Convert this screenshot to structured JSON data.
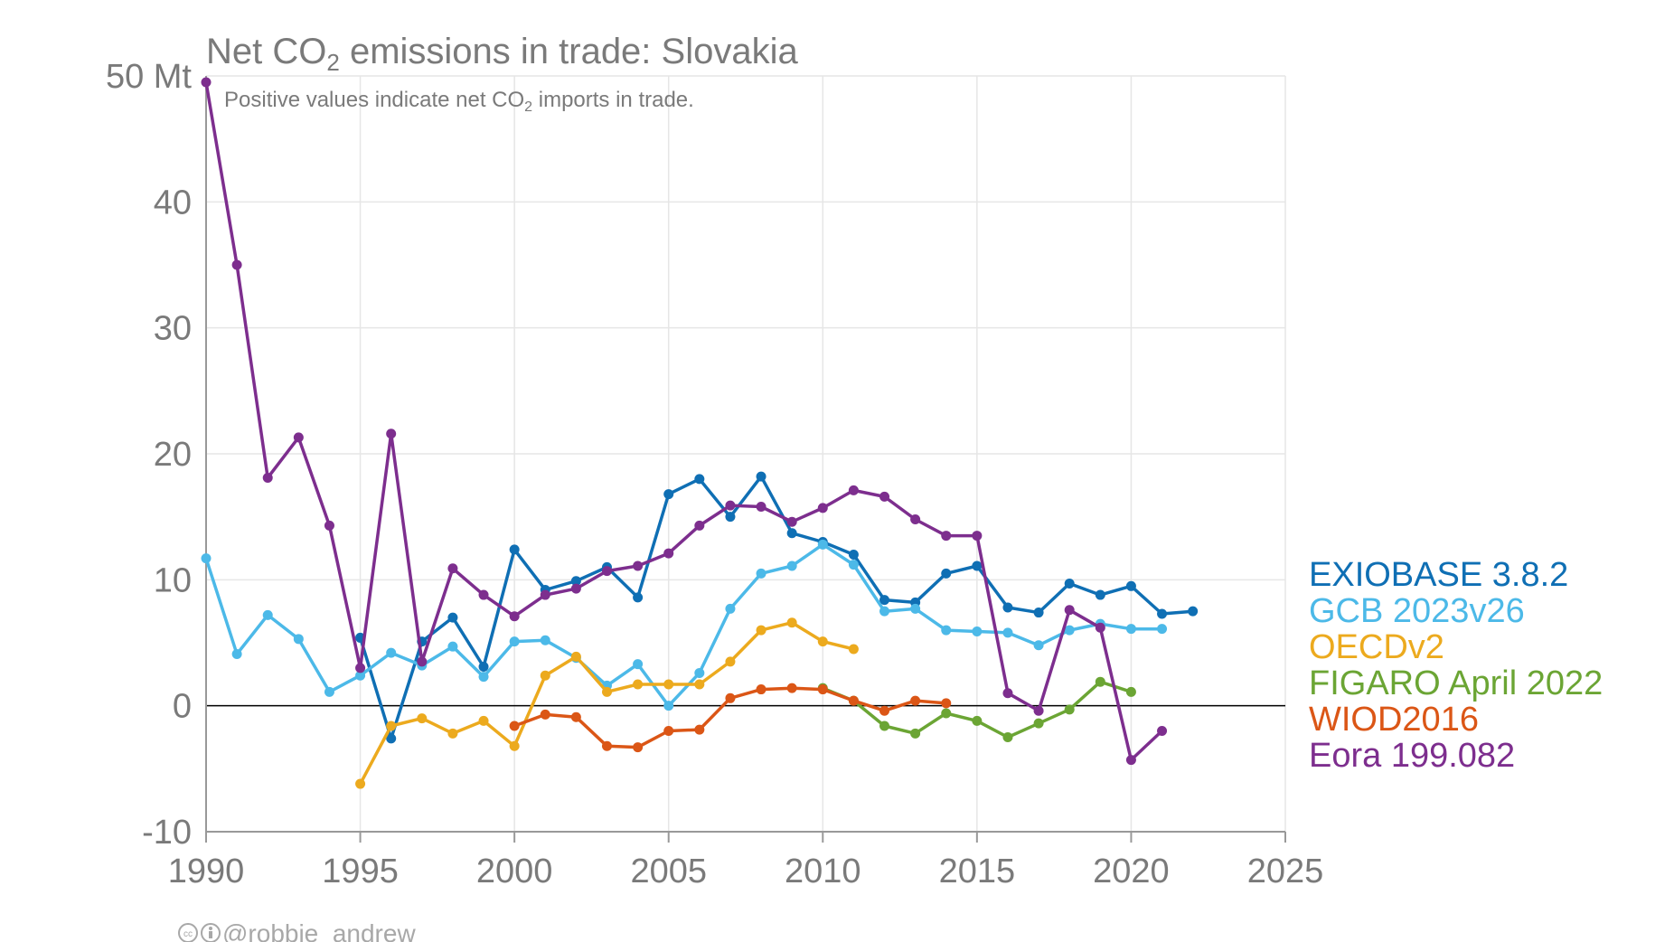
{
  "chart_data": {
    "type": "line",
    "title_main": "Net CO",
    "title_sub2": "2",
    "title_rest": " emissions in trade: Slovakia",
    "subtitle_main": "Positive values indicate net CO",
    "subtitle_sub2": "2",
    "subtitle_rest": " imports in trade.",
    "y_unit_label": "50 Mt",
    "credit": "@robbie_andrew",
    "xlim": [
      1990,
      2025
    ],
    "ylim": [
      -10,
      50
    ],
    "x_ticks": [
      1990,
      1995,
      2000,
      2005,
      2010,
      2015,
      2020,
      2025
    ],
    "y_ticks": [
      -10,
      0,
      10,
      20,
      30,
      40,
      50
    ],
    "y_tick_labels": [
      "-10",
      "0",
      "10",
      "20",
      "30",
      "40",
      "50 Mt"
    ],
    "grid": true,
    "legend_position": "right",
    "series": [
      {
        "name": "EXIOBASE 3.8.2",
        "color": "#0f6fb4",
        "x": [
          1995,
          1996,
          1997,
          1998,
          1999,
          2000,
          2001,
          2002,
          2003,
          2004,
          2005,
          2006,
          2007,
          2008,
          2009,
          2010,
          2011,
          2012,
          2013,
          2014,
          2015,
          2016,
          2017,
          2018,
          2019,
          2020,
          2021,
          2022
        ],
        "y": [
          5.4,
          -2.6,
          5.1,
          7.0,
          3.1,
          12.4,
          9.2,
          9.9,
          11.0,
          8.6,
          16.8,
          18.0,
          15.0,
          18.2,
          13.7,
          13.0,
          12.0,
          8.4,
          8.2,
          10.5,
          11.1,
          7.8,
          7.4,
          9.7,
          8.8,
          9.5,
          7.3,
          7.5
        ]
      },
      {
        "name": "GCB 2023v26",
        "color": "#4cb9e8",
        "x": [
          1990,
          1991,
          1992,
          1993,
          1994,
          1995,
          1996,
          1997,
          1998,
          1999,
          2000,
          2001,
          2002,
          2003,
          2004,
          2005,
          2006,
          2007,
          2008,
          2009,
          2010,
          2011,
          2012,
          2013,
          2014,
          2015,
          2016,
          2017,
          2018,
          2019,
          2020,
          2021
        ],
        "y": [
          11.7,
          4.1,
          7.2,
          5.3,
          1.1,
          2.4,
          4.2,
          3.2,
          4.7,
          2.3,
          5.1,
          5.2,
          3.8,
          1.6,
          3.3,
          0.0,
          2.6,
          7.7,
          10.5,
          11.1,
          12.8,
          11.2,
          7.5,
          7.7,
          6.0,
          5.9,
          5.8,
          4.8,
          6.0,
          6.5,
          6.1,
          6.1
        ]
      },
      {
        "name": "OECDv2",
        "color": "#ecaa1e",
        "x": [
          1995,
          1996,
          1997,
          1998,
          1999,
          2000,
          2001,
          2002,
          2003,
          2004,
          2005,
          2006,
          2007,
          2008,
          2009,
          2010,
          2011
        ],
        "y": [
          -6.2,
          -1.6,
          -1.0,
          -2.2,
          -1.2,
          -3.2,
          2.4,
          3.9,
          1.1,
          1.7,
          1.7,
          1.7,
          3.5,
          6.0,
          6.6,
          5.1,
          4.5
        ]
      },
      {
        "name": "FIGARO April 2022",
        "color": "#6ba534",
        "x": [
          2010,
          2011,
          2012,
          2013,
          2014,
          2015,
          2016,
          2017,
          2018,
          2019,
          2020
        ],
        "y": [
          1.4,
          0.4,
          -1.6,
          -2.2,
          -0.6,
          -1.2,
          -2.5,
          -1.4,
          -0.3,
          1.9,
          1.1
        ]
      },
      {
        "name": "WIOD2016",
        "color": "#db5616",
        "x": [
          2000,
          2001,
          2002,
          2003,
          2004,
          2005,
          2006,
          2007,
          2008,
          2009,
          2010,
          2011,
          2012,
          2013,
          2014
        ],
        "y": [
          -1.6,
          -0.7,
          -0.9,
          -3.2,
          -3.3,
          -2.0,
          -1.9,
          0.6,
          1.3,
          1.4,
          1.3,
          0.4,
          -0.4,
          0.4,
          0.2
        ]
      },
      {
        "name": "Eora 199.082",
        "color": "#7d2e8e",
        "x": [
          1990,
          1991,
          1992,
          1993,
          1994,
          1995,
          1996,
          1997,
          1998,
          1999,
          2000,
          2001,
          2002,
          2003,
          2004,
          2005,
          2006,
          2007,
          2008,
          2009,
          2010,
          2011,
          2012,
          2013,
          2014,
          2015,
          2016,
          2017,
          2018,
          2019,
          2020,
          2021
        ],
        "y": [
          49.5,
          35.0,
          18.1,
          21.3,
          14.3,
          3.0,
          21.6,
          3.5,
          10.9,
          8.8,
          7.1,
          8.8,
          9.3,
          10.7,
          11.1,
          12.1,
          14.3,
          15.9,
          15.8,
          14.6,
          15.7,
          17.1,
          16.6,
          14.8,
          13.5,
          13.5,
          1.0,
          -0.4,
          7.6,
          6.2,
          -4.3,
          -2.0
        ]
      }
    ]
  }
}
